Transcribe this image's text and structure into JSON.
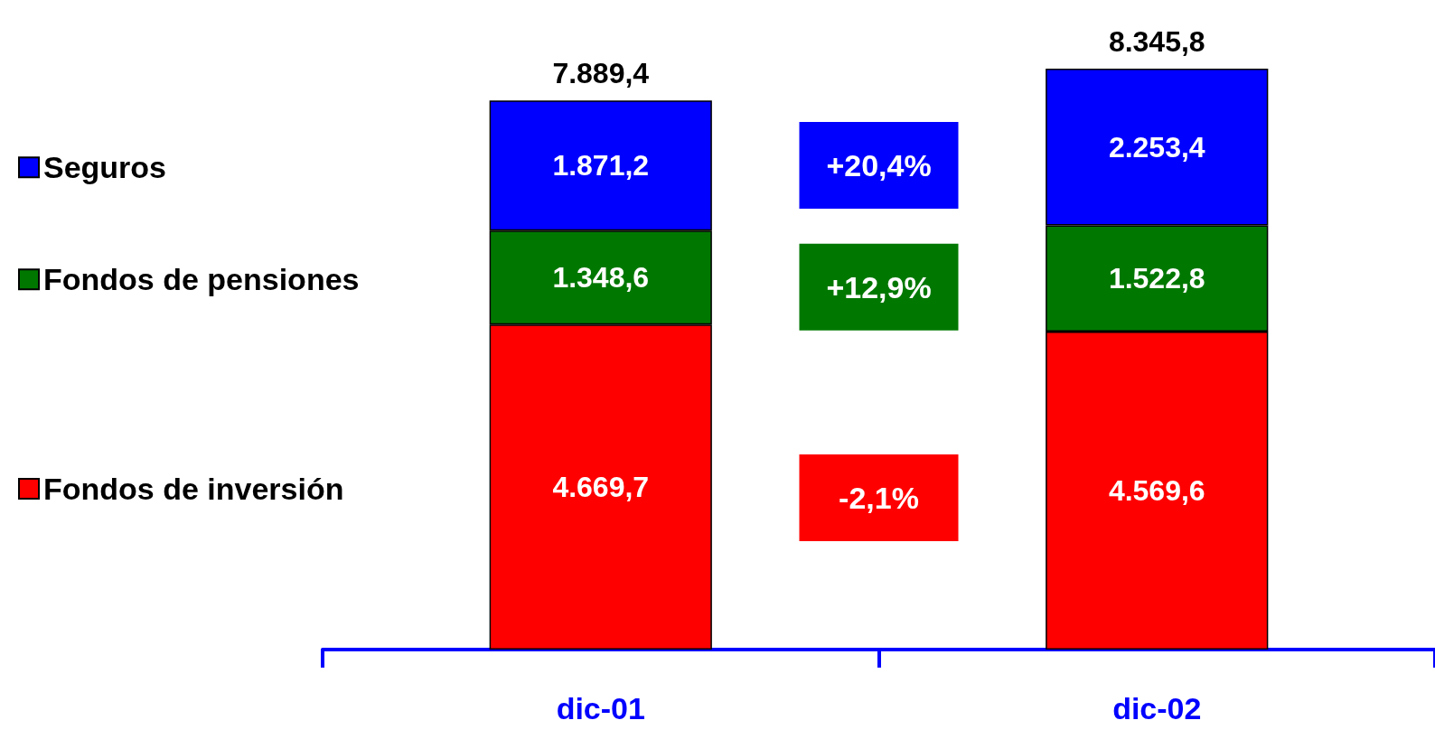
{
  "chart_data": {
    "type": "bar",
    "stacked": true,
    "categories": [
      "dic-01",
      "dic-02"
    ],
    "series": [
      {
        "name": "Fondos de inversión",
        "color": "#ff0000",
        "values": [
          4669.7,
          4569.6
        ],
        "value_labels": [
          "4.669,7",
          "4.569,6"
        ]
      },
      {
        "name": "Fondos de pensiones",
        "color": "#007800",
        "values": [
          1348.6,
          1522.8
        ],
        "value_labels": [
          "1.348,6",
          "1.522,8"
        ]
      },
      {
        "name": "Seguros",
        "color": "#0000ff",
        "values": [
          1871.2,
          2253.4
        ],
        "value_labels": [
          "1.871,2",
          "2.253,4"
        ]
      }
    ],
    "totals": [
      "7.889,4",
      "8.345,8"
    ],
    "annotations": [
      "-2,1%",
      "+12,9%",
      "+20,4%"
    ],
    "legend": "left",
    "grid": false
  }
}
